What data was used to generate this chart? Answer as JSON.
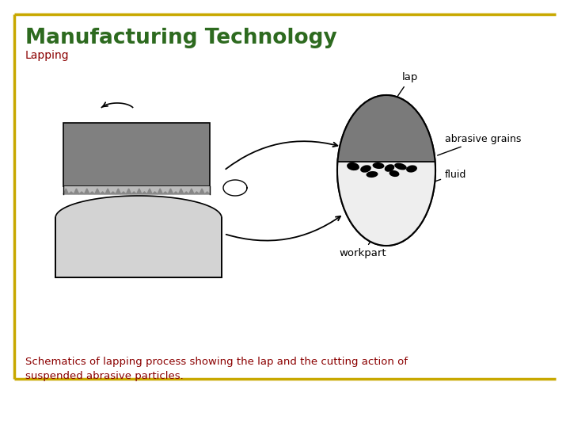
{
  "title": "Manufacturing Technology",
  "subtitle": "Lapping",
  "caption": "Schematics of lapping process showing the lap and the cutting action of\nsuspended abrasive particles.",
  "title_color": "#2d6a1f",
  "subtitle_color": "#8b0000",
  "caption_color": "#8b0000",
  "border_color": "#c8a800",
  "bg_color": "#ffffff",
  "lap_color": "#808080",
  "workpart_color": "#d3d3d3",
  "abrasive_top_color": "#7a7a7a",
  "abrasive_bottom_color": "#eeeeee",
  "grain_color": "#111111",
  "label_color": "#000000",
  "figw": 7.2,
  "figh": 5.4,
  "dpi": 100
}
